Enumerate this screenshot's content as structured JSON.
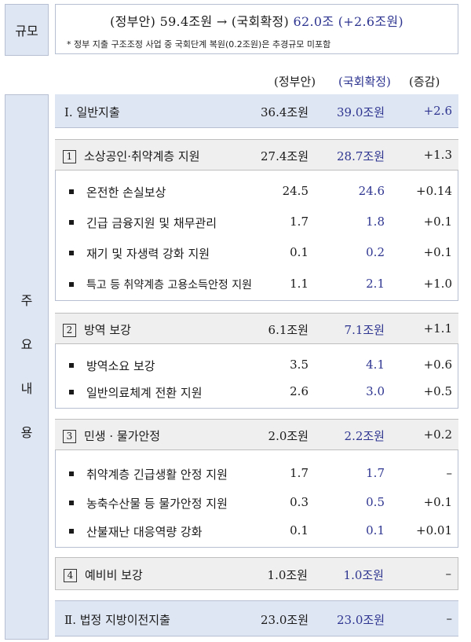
{
  "scale": {
    "label": "규모",
    "line_prefix": "(정부안) 59.4조원 → (국회확정) ",
    "line_blue": "62.0조 (+2.6조원)",
    "note": "* 정부 지출 구조조정 사업 중 국회단계 복원(0.2조원)은 추경규모 미포함"
  },
  "headers": {
    "gov": "(정부안)",
    "assembly": "(국회확정)",
    "change": "(증감)"
  },
  "main_label": [
    "주",
    "요",
    "내",
    "용"
  ],
  "general": {
    "label": "Ⅰ. 일반지출",
    "gov": "36.4조원",
    "assembly": "39.0조원",
    "change": "+2.6"
  },
  "sections": [
    {
      "num": "1",
      "label": "소상공인·취약계층 지원",
      "gov": "27.4조원",
      "assembly": "28.7조원",
      "change": "+1.3",
      "items": [
        {
          "label": "온전한 손실보상",
          "gov": "24.5",
          "assembly": "24.6",
          "change": "+0.14"
        },
        {
          "label": "긴급 금융지원 및 채무관리",
          "gov": "1.7",
          "assembly": "1.8",
          "change": "+0.1"
        },
        {
          "label": "재기 및 자생력 강화 지원",
          "gov": "0.1",
          "assembly": "0.2",
          "change": "+0.1"
        },
        {
          "label": "특고 등 취약계층 고용소득안정 지원",
          "gov": "1.1",
          "assembly": "2.1",
          "change": "+1.0"
        }
      ]
    },
    {
      "num": "2",
      "label": "방역 보강",
      "gov": "6.1조원",
      "assembly": "7.1조원",
      "change": "+1.1",
      "items": [
        {
          "label": "방역소요 보강",
          "gov": "3.5",
          "assembly": "4.1",
          "change": "+0.6"
        },
        {
          "label": "일반의료체계 전환 지원",
          "gov": "2.6",
          "assembly": "3.0",
          "change": "+0.5"
        }
      ]
    },
    {
      "num": "3",
      "label": "민생 · 물가안정",
      "gov": "2.0조원",
      "assembly": "2.2조원",
      "change": "+0.2",
      "items": [
        {
          "label": "취약계층 긴급생활 안정 지원",
          "gov": "1.7",
          "assembly": "1.7",
          "change": "–"
        },
        {
          "label": "농축수산물 등 물가안정 지원",
          "gov": "0.3",
          "assembly": "0.5",
          "change": "+0.1"
        },
        {
          "label": "산불재난 대응역량 강화",
          "gov": "0.1",
          "assembly": "0.1",
          "change": "+0.01"
        }
      ]
    },
    {
      "num": "4",
      "label": "예비비 보강",
      "gov": "1.0조원",
      "assembly": "1.0조원",
      "change": "–",
      "items": []
    }
  ],
  "transfer": {
    "label": "Ⅱ. 법정 지방이전지출",
    "gov": "23.0조원",
    "assembly": "23.0조원",
    "change": "–"
  }
}
